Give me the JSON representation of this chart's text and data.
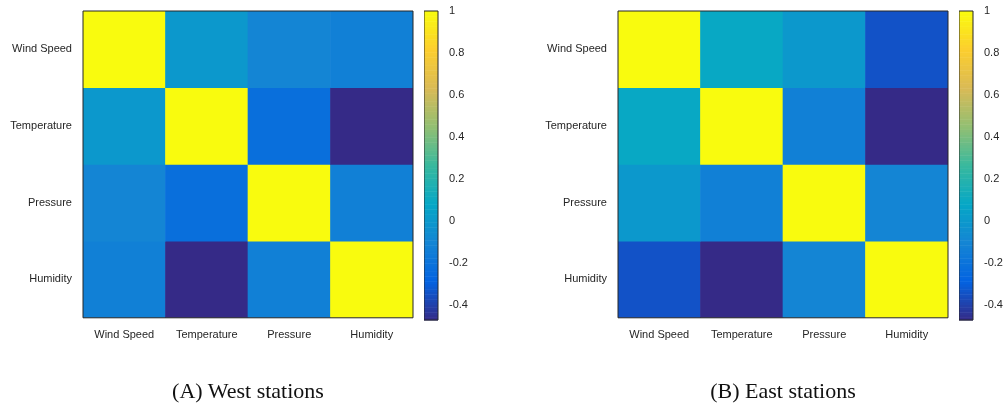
{
  "chart_data": [
    {
      "type": "heatmap",
      "title": "(A) West stations",
      "categories": [
        "Wind Speed",
        "Temperature",
        "Pressure",
        "Humidity"
      ],
      "y_categories": [
        "Wind Speed",
        "Temperature",
        "Pressure",
        "Humidity"
      ],
      "cells": [
        [
          1,
          0.0,
          -0.1,
          -0.13
        ],
        [
          0.0,
          1,
          -0.22,
          -0.47
        ],
        [
          -0.1,
          -0.22,
          1,
          -0.13
        ],
        [
          -0.13,
          -0.47,
          -0.13,
          1
        ]
      ],
      "clim": [
        -0.47,
        1
      ],
      "cticks": [
        -0.4,
        -0.2,
        0,
        0.2,
        0.4,
        0.6,
        0.8,
        1
      ]
    },
    {
      "type": "heatmap",
      "title": "(B) East stations",
      "categories": [
        "Wind Speed",
        "Temperature",
        "Pressure",
        "Humidity"
      ],
      "y_categories": [
        "Wind Speed",
        "Temperature",
        "Pressure",
        "Humidity"
      ],
      "cells": [
        [
          1,
          0.09,
          0.0,
          -0.34
        ],
        [
          0.09,
          1,
          -0.13,
          -0.47
        ],
        [
          0.0,
          -0.13,
          1,
          -0.1
        ],
        [
          -0.34,
          -0.47,
          -0.1,
          1
        ]
      ],
      "clim": [
        -0.47,
        1
      ],
      "cticks": [
        -0.4,
        -0.2,
        0,
        0.2,
        0.4,
        0.6,
        0.8,
        1
      ]
    }
  ]
}
